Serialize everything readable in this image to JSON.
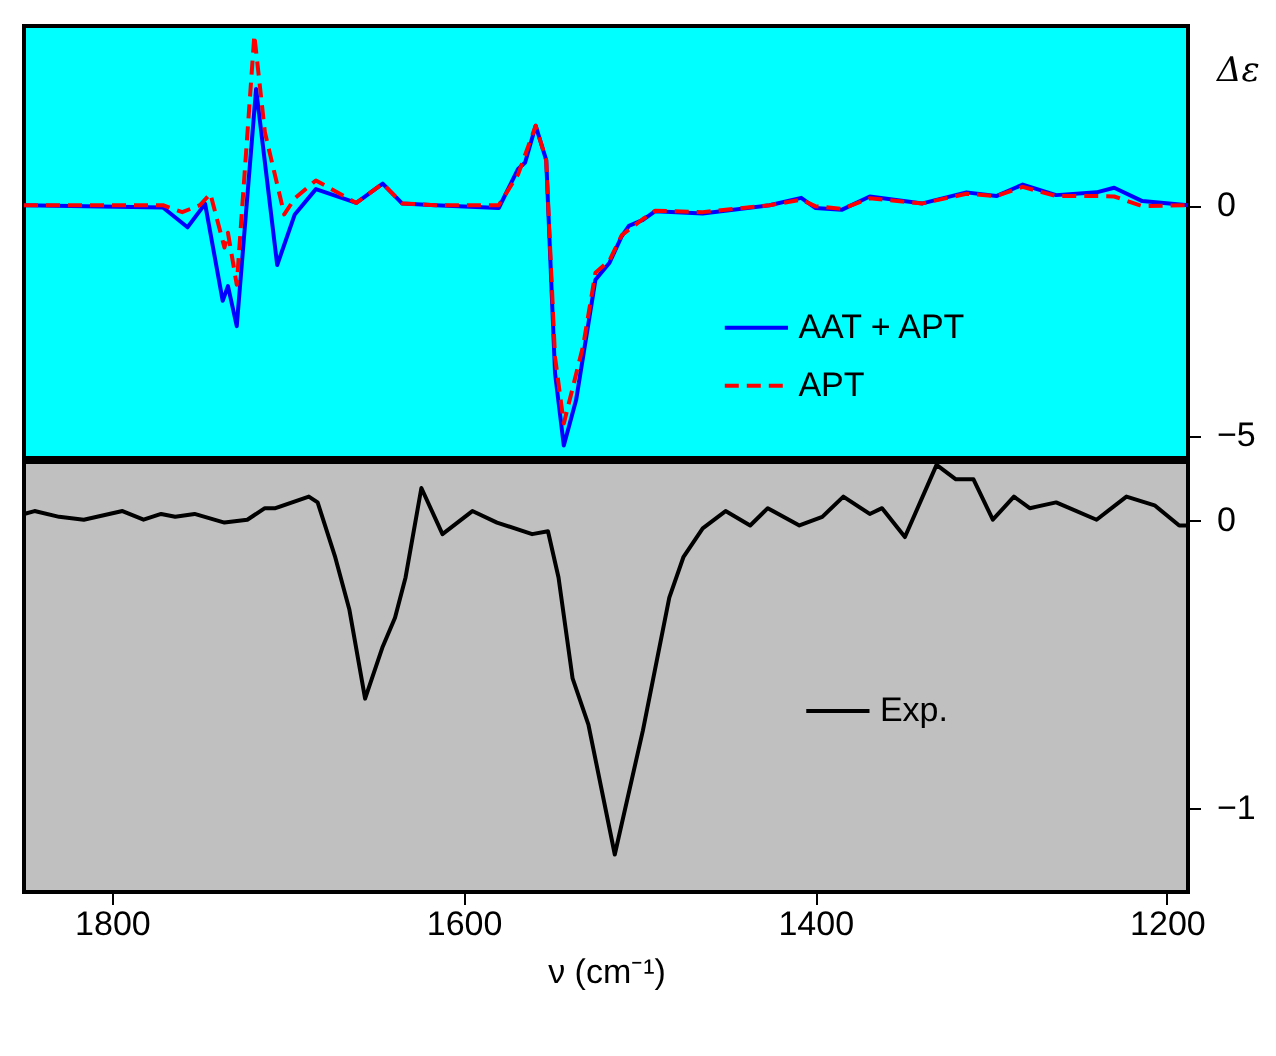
{
  "chart_data": [
    {
      "type": "line",
      "ylabel": "Δε",
      "xlim": [
        1850,
        1188
      ],
      "xticks": [
        1800,
        1600,
        1400,
        1200
      ],
      "ylim": [
        -5.5,
        3.9
      ],
      "yticks": [
        0,
        -5
      ],
      "tick_labels": "y",
      "legend": "bottom right",
      "series": [
        {
          "name": "AAT + APT",
          "color": "#0000ff",
          "line_style": "solid",
          "x": [
            1850,
            1771,
            1757,
            1747,
            1737,
            1734,
            1729,
            1718,
            1706,
            1696,
            1684,
            1661,
            1646,
            1635,
            1616,
            1580,
            1569,
            1565,
            1559,
            1553,
            1548,
            1543,
            1536,
            1525,
            1517,
            1510,
            1506,
            1498,
            1491,
            1464,
            1426,
            1408,
            1400,
            1385,
            1369,
            1339,
            1314,
            1297,
            1282,
            1263,
            1240,
            1230,
            1214,
            1188
          ],
          "values": [
            0,
            -0.05,
            -0.48,
            0.03,
            -2.08,
            -1.76,
            -2.63,
            2.53,
            -1.3,
            -0.2,
            0.35,
            0.05,
            0.47,
            0.04,
            0,
            -0.06,
            0.79,
            0.93,
            1.73,
            0.98,
            -3.65,
            -5.23,
            -4.24,
            -1.62,
            -1.25,
            -0.67,
            -0.45,
            -0.32,
            -0.13,
            -0.18,
            0,
            0.16,
            -0.06,
            -0.1,
            0.19,
            0.04,
            0.28,
            0.2,
            0.45,
            0.22,
            0.28,
            0.38,
            0.09,
            0
          ]
        },
        {
          "name": "APT",
          "color": "#ff0000",
          "line_style": "dashed",
          "x": [
            1850,
            1771,
            1760,
            1750,
            1744,
            1736,
            1734,
            1729,
            1719,
            1713,
            1702,
            1696,
            1684,
            1661,
            1646,
            1635,
            1616,
            1580,
            1569,
            1559,
            1553,
            1548,
            1543,
            1532,
            1525,
            1517,
            1510,
            1498,
            1491,
            1464,
            1426,
            1408,
            1400,
            1385,
            1369,
            1339,
            1314,
            1297,
            1282,
            1263,
            1240,
            1230,
            1214,
            1188
          ],
          "values": [
            0,
            0,
            -0.15,
            0,
            0.25,
            -0.92,
            -0.6,
            -1.73,
            3.7,
            1.59,
            -0.2,
            0.15,
            0.54,
            0.05,
            0.47,
            0.04,
            0,
            0,
            0.67,
            1.73,
            0.98,
            -3.3,
            -4.75,
            -3.06,
            -1.47,
            -1.2,
            -0.65,
            -0.3,
            -0.12,
            -0.15,
            0,
            0.12,
            -0.02,
            -0.08,
            0.15,
            0.04,
            0.25,
            0.2,
            0.4,
            0.2,
            0.2,
            0.19,
            -0.02,
            0
          ]
        }
      ]
    },
    {
      "type": "line",
      "xlabel": "ν (cm⁻¹)",
      "xlim": [
        1850,
        1188
      ],
      "xticks": [
        1800,
        1600,
        1400,
        1200
      ],
      "ylim": [
        -1.29,
        0.2
      ],
      "yticks": [
        0,
        -1
      ],
      "legend": "right",
      "series": [
        {
          "name": "Exp.",
          "color": "#000000",
          "line_style": "solid",
          "x": [
            1850,
            1844,
            1830,
            1816,
            1794,
            1782,
            1772,
            1764,
            1753,
            1736,
            1723,
            1713,
            1707,
            1688,
            1683,
            1673,
            1665,
            1656,
            1646,
            1639,
            1633,
            1624,
            1612,
            1595,
            1581,
            1561,
            1552,
            1546,
            1538,
            1529,
            1514,
            1498,
            1483,
            1475,
            1464,
            1451,
            1437,
            1427,
            1409,
            1396,
            1384,
            1369,
            1362,
            1349,
            1331,
            1320,
            1310,
            1299,
            1287,
            1278,
            1263,
            1240,
            1223,
            1207,
            1193,
            1188
          ],
          "values": [
            0.02,
            0.03,
            0.01,
            0,
            0.03,
            0,
            0.02,
            0.01,
            0.02,
            -0.01,
            0,
            0.04,
            0.04,
            0.08,
            0.06,
            -0.13,
            -0.31,
            -0.62,
            -0.44,
            -0.34,
            -0.2,
            0.11,
            -0.05,
            0.03,
            -0.01,
            -0.05,
            -0.04,
            -0.2,
            -0.55,
            -0.71,
            -1.16,
            -0.73,
            -0.27,
            -0.13,
            -0.03,
            0.03,
            -0.02,
            0.04,
            -0.02,
            0.01,
            0.08,
            0.02,
            0.04,
            -0.06,
            0.19,
            0.14,
            0.14,
            0,
            0.08,
            0.04,
            0.06,
            0,
            0.08,
            0.05,
            -0.02,
            -0.02
          ]
        }
      ]
    }
  ]
}
